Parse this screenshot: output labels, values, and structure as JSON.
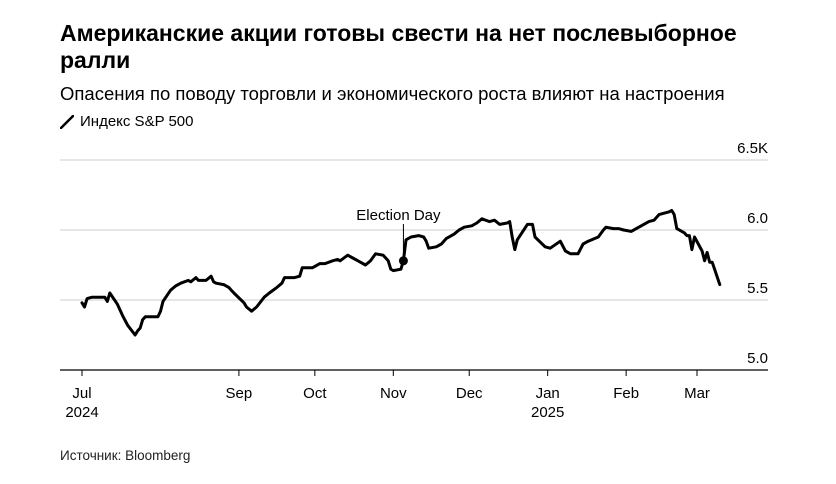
{
  "title": "Американские акции готовы свести на нет послевыборное ралли",
  "subtitle": "Опасения по поводу торговли и экономического роста влияют на настроения",
  "legend_label": "Индекс S&P 500",
  "source": "Источник: Bloomberg",
  "colors": {
    "line": "#000000",
    "grid": "#cccccc",
    "axis": "#000000"
  },
  "chart_data": {
    "type": "line",
    "title": "Американские акции готовы свести на нет послевыборное ралли",
    "subtitle": "Опасения по поводу торговли и экономического роста влияют на настроения",
    "ylim": [
      5.0,
      6.5
    ],
    "y_ticks": [
      {
        "value": 5.0,
        "label": "5.0"
      },
      {
        "value": 5.5,
        "label": "5.5"
      },
      {
        "value": 6.0,
        "label": "6.0"
      },
      {
        "value": 6.5,
        "label": "6.5K"
      }
    ],
    "x_ticks": [
      {
        "date": "2024-07-01",
        "label": "Jul",
        "sublabel": "2024"
      },
      {
        "date": "2024-09-01",
        "label": "Sep",
        "sublabel": ""
      },
      {
        "date": "2024-10-01",
        "label": "Oct",
        "sublabel": ""
      },
      {
        "date": "2024-11-01",
        "label": "Nov",
        "sublabel": ""
      },
      {
        "date": "2024-12-01",
        "label": "Dec",
        "sublabel": ""
      },
      {
        "date": "2025-01-01",
        "label": "Jan",
        "sublabel": "2025"
      },
      {
        "date": "2025-02-01",
        "label": "Feb",
        "sublabel": ""
      },
      {
        "date": "2025-03-01",
        "label": "Mar",
        "sublabel": ""
      }
    ],
    "annotation": {
      "date": "2024-11-05",
      "label": "Election Day",
      "value": 5.78
    },
    "series": [
      {
        "name": "Индекс S&P 500",
        "points": [
          [
            "2024-07-01",
            5.48
          ],
          [
            "2024-07-02",
            5.45
          ],
          [
            "2024-07-03",
            5.51
          ],
          [
            "2024-07-05",
            5.52
          ],
          [
            "2024-07-08",
            5.52
          ],
          [
            "2024-07-10",
            5.52
          ],
          [
            "2024-07-11",
            5.49
          ],
          [
            "2024-07-12",
            5.55
          ],
          [
            "2024-07-15",
            5.47
          ],
          [
            "2024-07-17",
            5.39
          ],
          [
            "2024-07-19",
            5.32
          ],
          [
            "2024-07-22",
            5.25
          ],
          [
            "2024-07-23",
            5.28
          ],
          [
            "2024-07-24",
            5.3
          ],
          [
            "2024-07-25",
            5.36
          ],
          [
            "2024-07-26",
            5.38
          ],
          [
            "2024-07-29",
            5.38
          ],
          [
            "2024-07-31",
            5.38
          ],
          [
            "2024-08-01",
            5.42
          ],
          [
            "2024-08-02",
            5.49
          ],
          [
            "2024-08-05",
            5.57
          ],
          [
            "2024-08-07",
            5.6
          ],
          [
            "2024-08-09",
            5.62
          ],
          [
            "2024-08-12",
            5.64
          ],
          [
            "2024-08-13",
            5.63
          ],
          [
            "2024-08-15",
            5.66
          ],
          [
            "2024-08-16",
            5.64
          ],
          [
            "2024-08-19",
            5.64
          ],
          [
            "2024-08-21",
            5.67
          ],
          [
            "2024-08-22",
            5.63
          ],
          [
            "2024-08-23",
            5.62
          ],
          [
            "2024-08-26",
            5.61
          ],
          [
            "2024-08-28",
            5.59
          ],
          [
            "2024-08-29",
            5.57
          ],
          [
            "2024-08-30",
            5.55
          ],
          [
            "2024-09-03",
            5.48
          ],
          [
            "2024-09-04",
            5.45
          ],
          [
            "2024-09-06",
            5.42
          ],
          [
            "2024-09-08",
            5.45
          ],
          [
            "2024-09-11",
            5.52
          ],
          [
            "2024-09-13",
            5.55
          ],
          [
            "2024-09-16",
            5.59
          ],
          [
            "2024-09-18",
            5.62
          ],
          [
            "2024-09-19",
            5.66
          ],
          [
            "2024-09-23",
            5.66
          ],
          [
            "2024-09-25",
            5.67
          ],
          [
            "2024-09-26",
            5.73
          ],
          [
            "2024-09-30",
            5.73
          ],
          [
            "2024-10-01",
            5.74
          ],
          [
            "2024-10-03",
            5.76
          ],
          [
            "2024-10-05",
            5.76
          ],
          [
            "2024-10-08",
            5.78
          ],
          [
            "2024-10-10",
            5.79
          ],
          [
            "2024-10-11",
            5.78
          ],
          [
            "2024-10-14",
            5.82
          ],
          [
            "2024-10-16",
            5.8
          ],
          [
            "2024-10-18",
            5.78
          ],
          [
            "2024-10-21",
            5.75
          ],
          [
            "2024-10-23",
            5.78
          ],
          [
            "2024-10-25",
            5.83
          ],
          [
            "2024-10-28",
            5.82
          ],
          [
            "2024-10-30",
            5.78
          ],
          [
            "2024-10-31",
            5.72
          ],
          [
            "2024-11-01",
            5.71
          ],
          [
            "2024-11-04",
            5.72
          ],
          [
            "2024-11-05",
            5.78
          ],
          [
            "2024-11-06",
            5.93
          ],
          [
            "2024-11-08",
            5.95
          ],
          [
            "2024-11-11",
            5.96
          ],
          [
            "2024-11-13",
            5.95
          ],
          [
            "2024-11-14",
            5.92
          ],
          [
            "2024-11-15",
            5.87
          ],
          [
            "2024-11-18",
            5.88
          ],
          [
            "2024-11-20",
            5.9
          ],
          [
            "2024-11-22",
            5.94
          ],
          [
            "2024-11-25",
            5.97
          ],
          [
            "2024-11-27",
            6.0
          ],
          [
            "2024-11-29",
            6.02
          ],
          [
            "2024-12-02",
            6.03
          ],
          [
            "2024-12-04",
            6.05
          ],
          [
            "2024-12-06",
            6.08
          ],
          [
            "2024-12-09",
            6.06
          ],
          [
            "2024-12-11",
            6.07
          ],
          [
            "2024-12-13",
            6.04
          ],
          [
            "2024-12-16",
            6.05
          ],
          [
            "2024-12-17",
            6.06
          ],
          [
            "2024-12-18",
            5.95
          ],
          [
            "2024-12-19",
            5.86
          ],
          [
            "2024-12-20",
            5.93
          ],
          [
            "2024-12-24",
            6.04
          ],
          [
            "2024-12-26",
            6.04
          ],
          [
            "2024-12-27",
            5.95
          ],
          [
            "2024-12-31",
            5.88
          ],
          [
            "2025-01-02",
            5.87
          ],
          [
            "2025-01-06",
            5.92
          ],
          [
            "2025-01-08",
            5.85
          ],
          [
            "2025-01-10",
            5.83
          ],
          [
            "2025-01-13",
            5.83
          ],
          [
            "2025-01-15",
            5.9
          ],
          [
            "2025-01-17",
            5.92
          ],
          [
            "2025-01-21",
            5.95
          ],
          [
            "2025-01-23",
            6.0
          ],
          [
            "2025-01-24",
            6.02
          ],
          [
            "2025-01-27",
            6.01
          ],
          [
            "2025-01-29",
            6.01
          ],
          [
            "2025-01-31",
            6.0
          ],
          [
            "2025-02-03",
            5.99
          ],
          [
            "2025-02-05",
            6.01
          ],
          [
            "2025-02-07",
            6.03
          ],
          [
            "2025-02-10",
            6.06
          ],
          [
            "2025-02-12",
            6.07
          ],
          [
            "2025-02-14",
            6.11
          ],
          [
            "2025-02-18",
            6.13
          ],
          [
            "2025-02-19",
            6.14
          ],
          [
            "2025-02-20",
            6.11
          ],
          [
            "2025-02-21",
            6.01
          ],
          [
            "2025-02-24",
            5.98
          ],
          [
            "2025-02-25",
            5.96
          ],
          [
            "2025-02-26",
            5.96
          ],
          [
            "2025-02-27",
            5.86
          ],
          [
            "2025-02-28",
            5.95
          ],
          [
            "2025-03-03",
            5.85
          ],
          [
            "2025-03-04",
            5.78
          ],
          [
            "2025-03-05",
            5.84
          ],
          [
            "2025-03-06",
            5.77
          ],
          [
            "2025-03-07",
            5.77
          ],
          [
            "2025-03-10",
            5.61
          ]
        ]
      }
    ]
  }
}
